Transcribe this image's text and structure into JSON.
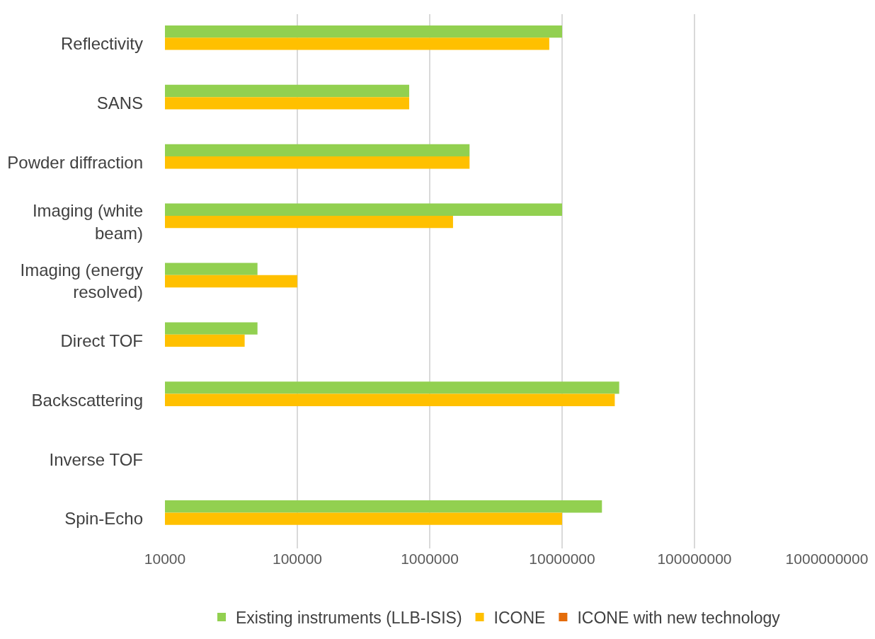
{
  "chart_data": {
    "type": "bar",
    "orientation": "horizontal",
    "log": "x",
    "categories": [
      "Reflectivity",
      "SANS",
      "Powder diffraction",
      "Imaging (white beam)",
      "Imaging (energy resolved)",
      "Direct TOF",
      "Backscattering",
      "Inverse TOF",
      "Spin-Echo"
    ],
    "series": [
      {
        "name": "Existing instruments (LLB-ISIS)",
        "color": "#92d050",
        "values": [
          10000000,
          700000,
          2000000,
          10000000,
          50000,
          50000,
          27000000,
          null,
          20000000
        ]
      },
      {
        "name": "ICONE",
        "color": "#ffc000",
        "values": [
          8000000,
          700000,
          2000000,
          1500000,
          100000,
          40000,
          25000000,
          null,
          10000000
        ]
      },
      {
        "name": "ICONE with new technology",
        "color": "#e46c0a",
        "values": [
          null,
          null,
          null,
          null,
          null,
          null,
          null,
          null,
          null
        ]
      }
    ],
    "xlim": [
      10000,
      1000000000
    ],
    "xticks": [
      10000,
      100000,
      1000000,
      10000000,
      100000000,
      1000000000
    ],
    "grid": "x",
    "legend": "bottom"
  }
}
